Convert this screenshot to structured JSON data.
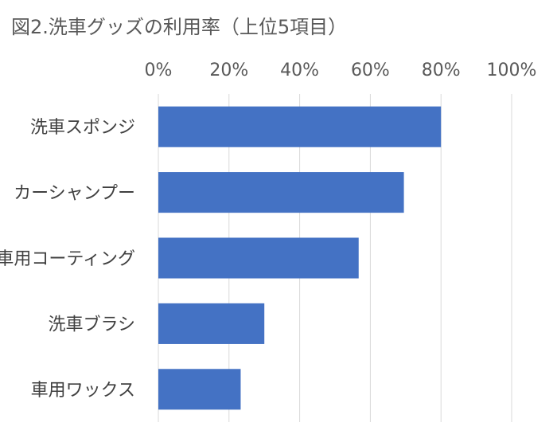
{
  "chart_data": {
    "type": "bar",
    "orientation": "horizontal",
    "title": "図2.洗車グッズの利用率（上位5項目）",
    "categories": [
      "洗車スポンジ",
      "カーシャンプー",
      "車用コーティング",
      "洗車ブラシ",
      "車用ワックス"
    ],
    "values": [
      0.8,
      0.695,
      0.567,
      0.3,
      0.233
    ],
    "xlim": [
      0,
      1
    ],
    "x_ticks": [
      0,
      0.2,
      0.4,
      0.6,
      0.8,
      1.0
    ],
    "x_tick_labels": [
      "0%",
      "20%",
      "40%",
      "60%",
      "80%",
      "100%"
    ],
    "x_axis_position": "top",
    "grid": true,
    "bar_color": "#4472c4",
    "xlabel": "",
    "ylabel": ""
  }
}
